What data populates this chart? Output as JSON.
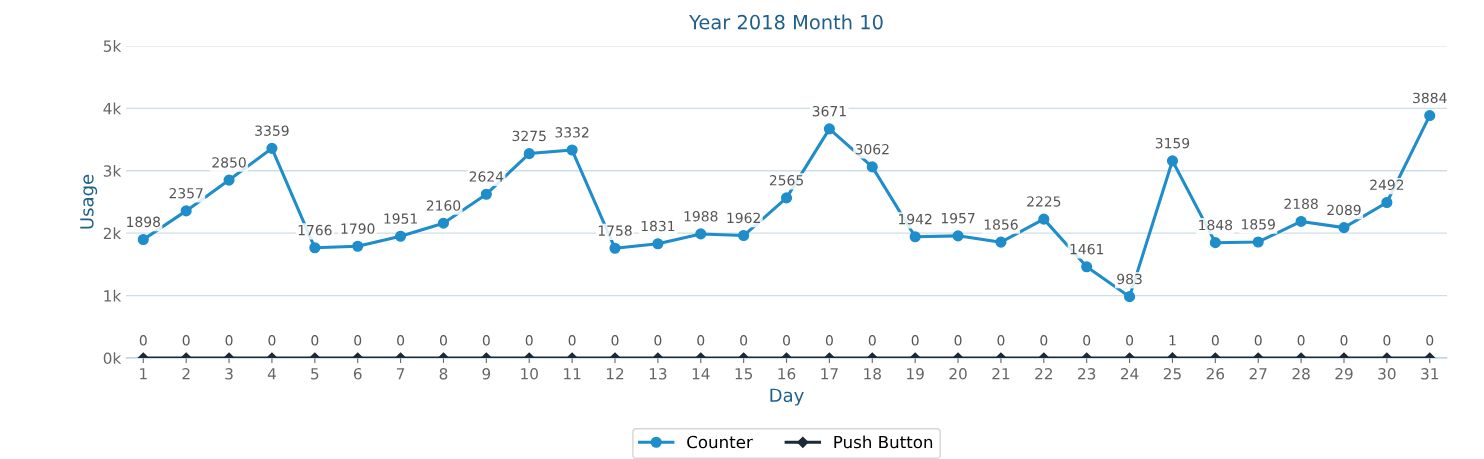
{
  "chart_data": {
    "type": "line",
    "title": "Year 2018 Month 10",
    "xlabel": "Day",
    "ylabel": "Usage",
    "categories": [
      "1",
      "2",
      "3",
      "4",
      "5",
      "6",
      "7",
      "8",
      "9",
      "10",
      "11",
      "12",
      "13",
      "14",
      "15",
      "16",
      "17",
      "18",
      "19",
      "20",
      "21",
      "22",
      "23",
      "24",
      "25",
      "26",
      "27",
      "28",
      "29",
      "30",
      "31"
    ],
    "series": [
      {
        "name": "Counter",
        "color": "#1f8dc9",
        "marker": "circle",
        "values": [
          1898,
          2357,
          2850,
          3359,
          1766,
          1790,
          1951,
          2160,
          2624,
          3275,
          3332,
          1758,
          1831,
          1988,
          1962,
          2565,
          3671,
          3062,
          1942,
          1957,
          1856,
          2225,
          1461,
          983,
          3159,
          1848,
          1859,
          2188,
          2089,
          2492,
          3884
        ]
      },
      {
        "name": "Push Button",
        "color": "#1c2a38",
        "marker": "diamond",
        "values": [
          0,
          0,
          0,
          0,
          0,
          0,
          0,
          0,
          0,
          0,
          0,
          0,
          0,
          0,
          0,
          0,
          0,
          0,
          0,
          0,
          0,
          0,
          0,
          0,
          1,
          0,
          0,
          0,
          0,
          0,
          0
        ]
      }
    ],
    "ylim": [
      0,
      5000
    ],
    "yticks": [
      {
        "value": 0,
        "label": "0k"
      },
      {
        "value": 1000,
        "label": "1k"
      },
      {
        "value": 2000,
        "label": "2k"
      },
      {
        "value": 3000,
        "label": "3k"
      },
      {
        "value": 4000,
        "label": "4k"
      },
      {
        "value": 5000,
        "label": "5k"
      }
    ],
    "grid": "y",
    "legend": "bottom",
    "data_labels": true,
    "line_style": "solid"
  }
}
